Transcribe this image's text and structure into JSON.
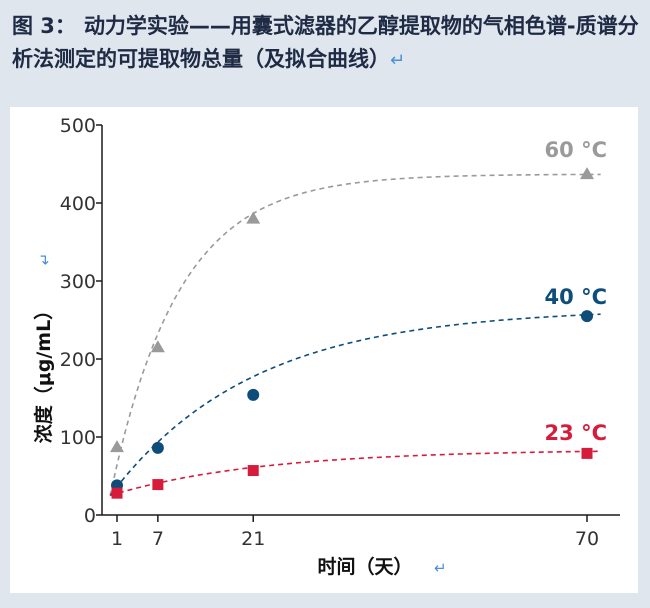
{
  "caption": {
    "figure_num": "图 3：",
    "text": "动力学实验——用囊式滤器的乙醇提取物的气相色谱-质谱分析法测定的可提取物总量（及拟合曲线）",
    "return_mark": "↵"
  },
  "chart_data": {
    "type": "scatter",
    "title": "",
    "xlabel": "时间（天）",
    "ylabel": "浓度（μg/mL）",
    "label_return_mark": "↵",
    "xlim": [
      0,
      70
    ],
    "ylim": [
      0,
      500
    ],
    "x_ticks": [
      1,
      7,
      21,
      70
    ],
    "y_ticks": [
      0,
      100,
      200,
      300,
      400,
      500
    ],
    "grid": false,
    "legend": "inline labels at right end of curves",
    "series": [
      {
        "name": "60 °C",
        "marker": "triangle",
        "color": "#9a9a9a",
        "x": [
          1,
          7,
          21,
          70
        ],
        "y": [
          87,
          215,
          380,
          437
        ],
        "fit": {
          "plateau": 437,
          "start": 25,
          "rate": 0.1
        }
      },
      {
        "name": "40 °C",
        "marker": "circle",
        "color": "#0e4d7a",
        "x": [
          1,
          7,
          21,
          70
        ],
        "y": [
          38,
          86,
          154,
          255
        ],
        "fit": {
          "plateau": 265,
          "start": 25,
          "rate": 0.048
        }
      },
      {
        "name": "23 °C",
        "marker": "square",
        "color": "#d71b3b",
        "x": [
          1,
          7,
          21,
          70
        ],
        "y": [
          28,
          39,
          57,
          79
        ],
        "fit": {
          "plateau": 84,
          "start": 25,
          "rate": 0.045
        }
      }
    ]
  }
}
